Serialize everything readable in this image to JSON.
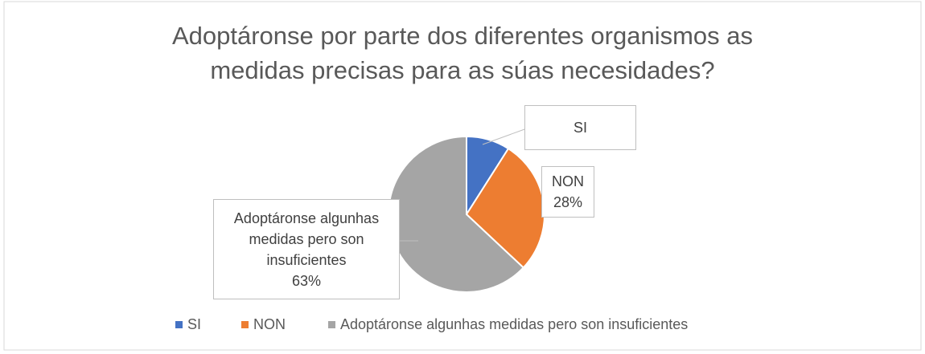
{
  "chart_data": {
    "type": "pie",
    "title": "Adoptáronse por parte dos diferentes organismos as medidas precisas para as súas necesidades?",
    "categories": [
      "SI",
      "NON",
      "Adoptáronse algunhas medidas pero son insuficientes"
    ],
    "values": [
      9,
      28,
      63
    ],
    "value_labels": [
      null,
      "28%",
      "63%"
    ],
    "colors": [
      "#4472c4",
      "#ed7d31",
      "#a5a5a5"
    ],
    "legend": "bottom"
  }
}
